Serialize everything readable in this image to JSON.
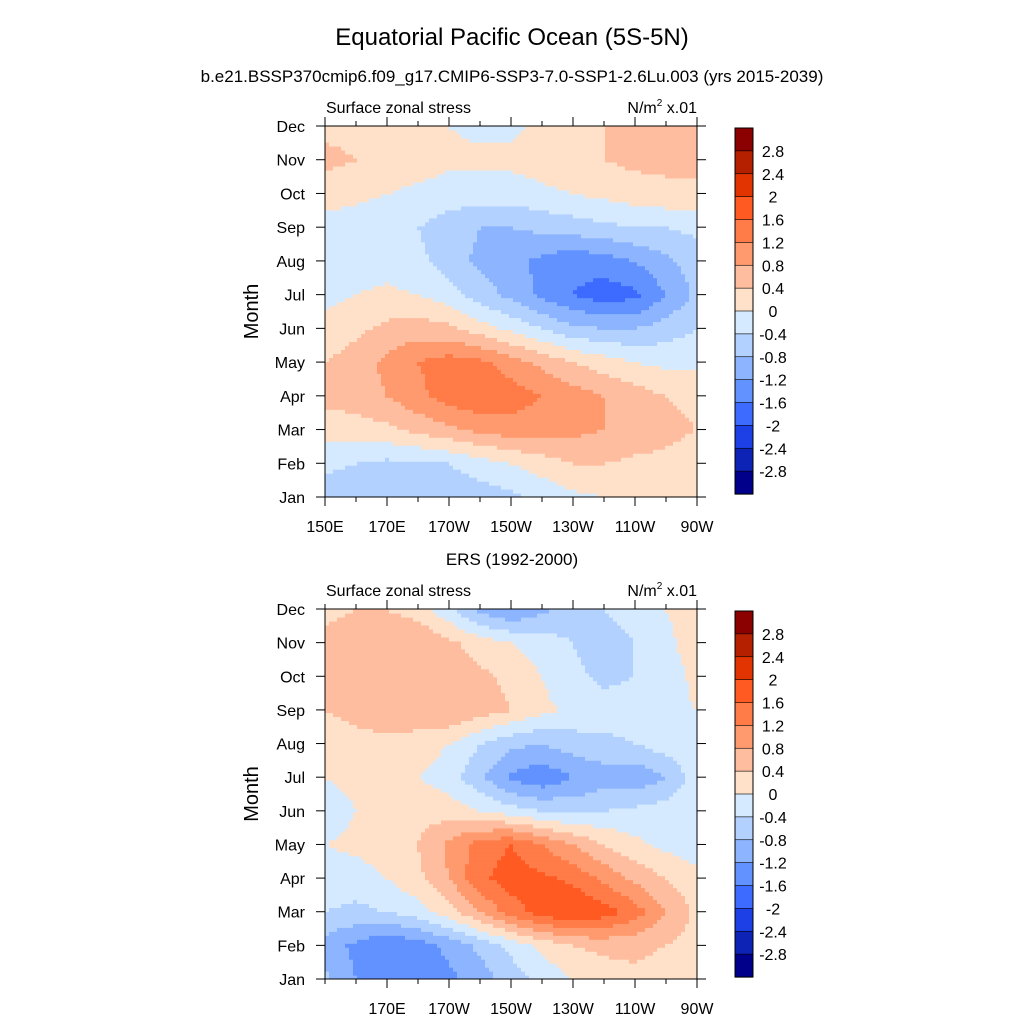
{
  "main_title": "Equatorial Pacific Ocean (5S-5N)",
  "colorbar": {
    "labels": [
      "2.8",
      "2.4",
      "2",
      "1.6",
      "1.2",
      "0.8",
      "0.4",
      "0",
      "-0.4",
      "-0.8",
      "-1.2",
      "-1.6",
      "-2",
      "-2.4",
      "-2.8"
    ],
    "colors": [
      "#8b0000",
      "#b52000",
      "#e13400",
      "#ff5a22",
      "#ff7b47",
      "#ff9a6e",
      "#ffbda0",
      "#ffe0c9",
      "#d6eaff",
      "#b3d1ff",
      "#8db4ff",
      "#6292ff",
      "#3d6bff",
      "#1c3fe6",
      "#0c23b6",
      "#00008b"
    ]
  },
  "colors": {
    "neutral_pos": "#ffe0c9",
    "neutral_neg": "#d6eaff"
  },
  "chart_data": [
    {
      "type": "heatmap",
      "title": "b.e21.BSSP370cmip6.f09_g17.CMIP6-SSP3-7.0-SSP1-2.6Lu.003 (yrs 2015-2039)",
      "left_label": "Surface zonal stress",
      "right_label": "N/m",
      "right_label_sup": "2",
      "right_label_suffix": " x.01",
      "ylabel": "Month",
      "xlabel": "",
      "x_ticks": [
        "150E",
        "170E",
        "170W",
        "150W",
        "130W",
        "110W",
        "90W"
      ],
      "y_ticks": [
        "Jan",
        "Feb",
        "Mar",
        "Apr",
        "May",
        "Jun",
        "Jul",
        "Aug",
        "Sep",
        "Oct",
        "Nov",
        "Dec"
      ],
      "x_range": [
        150,
        270
      ],
      "y_range": [
        1,
        12
      ],
      "units": "N/m2 x.01",
      "levels": [
        -2.8,
        -2.4,
        -2,
        -1.6,
        -1.2,
        -0.8,
        -0.4,
        0,
        0.4,
        0.8,
        1.2,
        1.6,
        2,
        2.4,
        2.8
      ],
      "grid": {
        "x": [
          150,
          160,
          170,
          180,
          190,
          200,
          210,
          220,
          230,
          240,
          250,
          260,
          270
        ],
        "y": [
          1,
          2,
          3,
          4,
          5,
          6,
          7,
          8,
          9,
          10,
          11,
          12
        ],
        "values": [
          [
            -0.6,
            -0.7,
            -0.8,
            -0.8,
            -0.7,
            -0.6,
            -0.5,
            -0.3,
            -0.1,
            0.0,
            0.1,
            0.1,
            0.0
          ],
          [
            -0.3,
            -0.4,
            -0.5,
            -0.5,
            -0.4,
            -0.2,
            0.0,
            0.2,
            0.4,
            0.4,
            0.3,
            0.3,
            0.2
          ],
          [
            0.2,
            0.2,
            0.3,
            0.5,
            0.7,
            0.9,
            1.0,
            1.0,
            0.9,
            0.8,
            0.7,
            0.5,
            0.4
          ],
          [
            0.5,
            0.6,
            0.8,
            1.1,
            1.4,
            1.5,
            1.4,
            1.2,
            1.0,
            0.8,
            0.6,
            0.4,
            0.3
          ],
          [
            0.4,
            0.6,
            0.9,
            1.2,
            1.4,
            1.3,
            1.0,
            0.7,
            0.4,
            0.2,
            0.0,
            -0.1,
            -0.1
          ],
          [
            0.1,
            0.3,
            0.5,
            0.6,
            0.5,
            0.2,
            -0.1,
            -0.4,
            -0.7,
            -0.8,
            -0.8,
            -0.6,
            -0.4
          ],
          [
            -0.1,
            0.0,
            0.1,
            0.0,
            -0.2,
            -0.6,
            -0.9,
            -1.3,
            -1.6,
            -1.8,
            -1.7,
            -1.2,
            -0.7
          ],
          [
            -0.3,
            -0.2,
            -0.2,
            -0.3,
            -0.6,
            -0.9,
            -1.1,
            -1.3,
            -1.5,
            -1.4,
            -1.2,
            -0.9,
            -0.6
          ],
          [
            -0.2,
            -0.2,
            -0.3,
            -0.4,
            -0.6,
            -0.8,
            -0.8,
            -0.7,
            -0.6,
            -0.5,
            -0.4,
            -0.4,
            -0.3
          ],
          [
            0.2,
            0.1,
            0.0,
            -0.1,
            -0.2,
            -0.2,
            -0.2,
            -0.1,
            0.0,
            0.1,
            0.2,
            0.3,
            0.3
          ],
          [
            0.5,
            0.4,
            0.3,
            0.2,
            0.1,
            0.1,
            0.1,
            0.2,
            0.3,
            0.4,
            0.5,
            0.5,
            0.5
          ],
          [
            0.3,
            0.3,
            0.2,
            0.1,
            0.0,
            -0.1,
            -0.1,
            0.1,
            0.3,
            0.4,
            0.5,
            0.5,
            0.4
          ]
        ]
      }
    },
    {
      "type": "heatmap",
      "title": "ERS (1992-2000)",
      "left_label": "Surface zonal stress",
      "right_label": "N/m",
      "right_label_sup": "2",
      "right_label_suffix": " x.01",
      "ylabel": "Month",
      "xlabel": "",
      "x_ticks": [
        "170E",
        "170W",
        "150W",
        "130W",
        "110W",
        "90W"
      ],
      "y_ticks": [
        "Jan",
        "Feb",
        "Mar",
        "Apr",
        "May",
        "Jun",
        "Jul",
        "Aug",
        "Sep",
        "Oct",
        "Nov",
        "Dec"
      ],
      "x_range": [
        150,
        270
      ],
      "y_range": [
        1,
        12
      ],
      "units": "N/m2 x.01",
      "levels": [
        -2.8,
        -2.4,
        -2,
        -1.6,
        -1.2,
        -0.8,
        -0.4,
        0,
        0.4,
        0.8,
        1.2,
        1.6,
        2,
        2.4,
        2.8
      ],
      "grid": {
        "x": [
          150,
          160,
          170,
          180,
          190,
          200,
          210,
          220,
          230,
          240,
          250,
          260,
          270
        ],
        "y": [
          1,
          2,
          3,
          4,
          5,
          6,
          7,
          8,
          9,
          10,
          11,
          12
        ],
        "values": [
          [
            -0.7,
            -1.2,
            -1.4,
            -1.5,
            -1.3,
            -1.0,
            -0.6,
            -0.3,
            0.0,
            0.2,
            0.3,
            0.2,
            0.2
          ],
          [
            -1.0,
            -1.3,
            -1.6,
            -1.4,
            -1.1,
            -0.7,
            -0.3,
            0.1,
            0.4,
            0.5,
            0.5,
            0.4,
            0.2
          ],
          [
            -0.4,
            -0.5,
            -0.4,
            -0.2,
            0.2,
            0.8,
            1.4,
            1.8,
            2.0,
            1.8,
            1.4,
            0.8,
            0.3
          ],
          [
            -0.2,
            -0.2,
            0.0,
            0.3,
            0.8,
            1.5,
            1.8,
            1.7,
            1.5,
            1.1,
            0.7,
            0.4,
            0.1
          ],
          [
            0.0,
            0.1,
            0.2,
            0.4,
            0.9,
            1.4,
            1.6,
            1.2,
            0.8,
            0.4,
            0.1,
            -0.1,
            -0.2
          ],
          [
            -0.2,
            0.0,
            0.2,
            0.3,
            0.2,
            0.0,
            -0.2,
            -0.4,
            -0.5,
            -0.4,
            -0.3,
            -0.2,
            -0.1
          ],
          [
            0.0,
            0.1,
            0.1,
            0.0,
            -0.2,
            -0.7,
            -1.3,
            -1.5,
            -1.2,
            -1.0,
            -1.1,
            -0.8,
            -0.2
          ],
          [
            0.2,
            0.3,
            0.3,
            0.2,
            0.0,
            -0.4,
            -0.7,
            -0.8,
            -0.6,
            -0.5,
            -0.4,
            -0.2,
            0.0
          ],
          [
            0.4,
            0.5,
            0.6,
            0.7,
            0.8,
            0.6,
            0.4,
            0.1,
            -0.1,
            -0.2,
            -0.2,
            -0.1,
            0.0
          ],
          [
            0.4,
            0.6,
            0.7,
            0.8,
            0.7,
            0.5,
            0.3,
            0.0,
            -0.3,
            -0.5,
            -0.4,
            -0.2,
            0.1
          ],
          [
            0.5,
            0.6,
            0.8,
            0.8,
            0.5,
            0.2,
            0.0,
            -0.2,
            -0.4,
            -0.6,
            -0.4,
            -0.1,
            0.2
          ],
          [
            0.3,
            0.4,
            0.4,
            0.2,
            -0.3,
            -0.9,
            -1.2,
            -0.9,
            -0.6,
            -0.4,
            -0.2,
            0.0,
            0.2
          ]
        ]
      }
    }
  ]
}
